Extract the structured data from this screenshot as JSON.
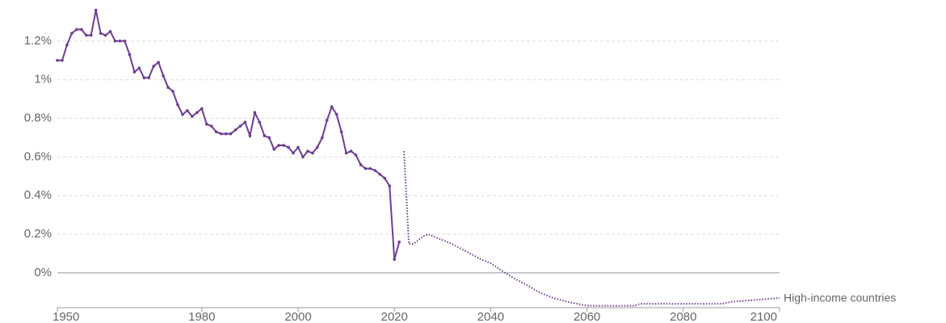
{
  "chart_data": {
    "type": "line",
    "series": [
      {
        "name": "High-income countries",
        "color": "#6d3e91",
        "x": [
          1950,
          1951,
          1952,
          1953,
          1954,
          1955,
          1956,
          1957,
          1958,
          1959,
          1960,
          1961,
          1962,
          1963,
          1964,
          1965,
          1966,
          1967,
          1968,
          1969,
          1970,
          1971,
          1972,
          1973,
          1974,
          1975,
          1976,
          1977,
          1978,
          1979,
          1980,
          1981,
          1982,
          1983,
          1984,
          1985,
          1986,
          1987,
          1988,
          1989,
          1990,
          1991,
          1992,
          1993,
          1994,
          1995,
          1996,
          1997,
          1998,
          1999,
          2000,
          2001,
          2002,
          2003,
          2004,
          2005,
          2006,
          2007,
          2008,
          2009,
          2010,
          2011,
          2012,
          2013,
          2014,
          2015,
          2016,
          2017,
          2018,
          2019,
          2020,
          2021
        ],
        "values": [
          1.1,
          1.1,
          1.18,
          1.24,
          1.26,
          1.26,
          1.23,
          1.23,
          1.36,
          1.24,
          1.23,
          1.25,
          1.2,
          1.2,
          1.2,
          1.13,
          1.04,
          1.06,
          1.01,
          1.01,
          1.07,
          1.09,
          1.02,
          0.96,
          0.94,
          0.87,
          0.82,
          0.84,
          0.81,
          0.83,
          0.85,
          0.77,
          0.76,
          0.73,
          0.72,
          0.72,
          0.72,
          0.74,
          0.76,
          0.78,
          0.71,
          0.83,
          0.78,
          0.71,
          0.7,
          0.64,
          0.66,
          0.66,
          0.65,
          0.62,
          0.65,
          0.6,
          0.63,
          0.62,
          0.65,
          0.7,
          0.79,
          0.86,
          0.82,
          0.73,
          0.62,
          0.63,
          0.61,
          0.56,
          0.54,
          0.54,
          0.53,
          0.51,
          0.49,
          0.45,
          0.07,
          0.16
        ]
      },
      {
        "color": "#6d3e91",
        "dashed": true,
        "x": [
          2022,
          2023,
          2024,
          2025,
          2026,
          2027,
          2028,
          2030,
          2032,
          2035,
          2038,
          2040,
          2043,
          2045,
          2048,
          2050,
          2053,
          2056,
          2058,
          2060,
          2065,
          2070,
          2071,
          2080,
          2088,
          2090,
          2095,
          2100
        ],
        "values": [
          0.63,
          0.15,
          0.15,
          0.17,
          0.19,
          0.2,
          0.19,
          0.17,
          0.15,
          0.11,
          0.07,
          0.05,
          0.0,
          -0.03,
          -0.07,
          -0.1,
          -0.13,
          -0.15,
          -0.16,
          -0.17,
          -0.17,
          -0.17,
          -0.16,
          -0.16,
          -0.16,
          -0.15,
          -0.14,
          -0.13
        ]
      }
    ],
    "xlim": [
      1950,
      2100
    ],
    "xticks": [
      1950,
      1980,
      2000,
      2020,
      2040,
      2060,
      2080,
      2100
    ],
    "ylim": [
      -0.18,
      1.4
    ],
    "yticks": [
      {
        "value": 0,
        "label": "0%"
      },
      {
        "value": 0.2,
        "label": "0.2%"
      },
      {
        "value": 0.4,
        "label": "0.4%"
      },
      {
        "value": 0.6,
        "label": "0.6%"
      },
      {
        "value": 0.8,
        "label": "0.8%"
      },
      {
        "value": 1,
        "label": "1%"
      },
      {
        "value": 1.2,
        "label": "1.2%"
      }
    ],
    "grid": true
  }
}
